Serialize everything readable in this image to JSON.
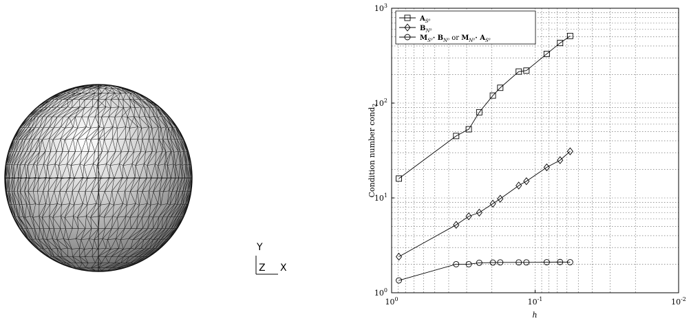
{
  "sphere": {
    "triad": {
      "y_label": "Y",
      "z_label": "Z",
      "x_label": "X"
    }
  },
  "chart_data": {
    "type": "line",
    "xlabel": "h",
    "ylabel": "Condition number cond",
    "ylabel_subscript": "2",
    "x_scale": "log",
    "y_scale": "log",
    "x_reversed": true,
    "xlim": [
      1,
      0.01
    ],
    "ylim": [
      1,
      1000
    ],
    "grid": true,
    "legend_position": "top-left",
    "x_ticks": [
      {
        "base": "10",
        "exp": "0",
        "value": 1
      },
      {
        "base": "10",
        "exp": "-1",
        "value": 0.1
      },
      {
        "base": "10",
        "exp": "-2",
        "value": 0.01
      }
    ],
    "y_ticks": [
      {
        "base": "10",
        "exp": "0",
        "value": 1
      },
      {
        "base": "10",
        "exp": "1",
        "value": 10
      },
      {
        "base": "10",
        "exp": "2",
        "value": 100
      },
      {
        "base": "10",
        "exp": "3",
        "value": 1000
      }
    ],
    "series": [
      {
        "legend": {
          "main": "A",
          "sub": "S⁰"
        },
        "marker": "square",
        "x": [
          0.89,
          0.355,
          0.29,
          0.245,
          0.197,
          0.175,
          0.13,
          0.115,
          0.083,
          0.067,
          0.057
        ],
        "y": [
          16,
          45,
          53,
          80,
          120,
          145,
          215,
          220,
          330,
          430,
          510
        ]
      },
      {
        "legend": {
          "main": "B",
          "sub": "N⁰"
        },
        "marker": "diamond",
        "x": [
          0.89,
          0.355,
          0.29,
          0.245,
          0.197,
          0.175,
          0.13,
          0.115,
          0.083,
          0.067,
          0.057
        ],
        "y": [
          2.4,
          5.2,
          6.4,
          7.0,
          8.7,
          9.8,
          13.5,
          15.0,
          21,
          25,
          31
        ]
      },
      {
        "legend": {
          "main": "M",
          "sub": "S⁰",
          "sep": "· ",
          "main2": "B",
          "sub2": "N⁰",
          "or": " or ",
          "main3": "M",
          "sub3": "N⁰",
          "sep2": "· ",
          "main4": "A",
          "sub4": "S⁰"
        },
        "marker": "circle",
        "x": [
          0.89,
          0.355,
          0.29,
          0.245,
          0.197,
          0.175,
          0.13,
          0.115,
          0.083,
          0.067,
          0.057
        ],
        "y": [
          1.35,
          2.0,
          2.0,
          2.07,
          2.08,
          2.09,
          2.09,
          2.09,
          2.1,
          2.11,
          2.1
        ]
      }
    ]
  }
}
